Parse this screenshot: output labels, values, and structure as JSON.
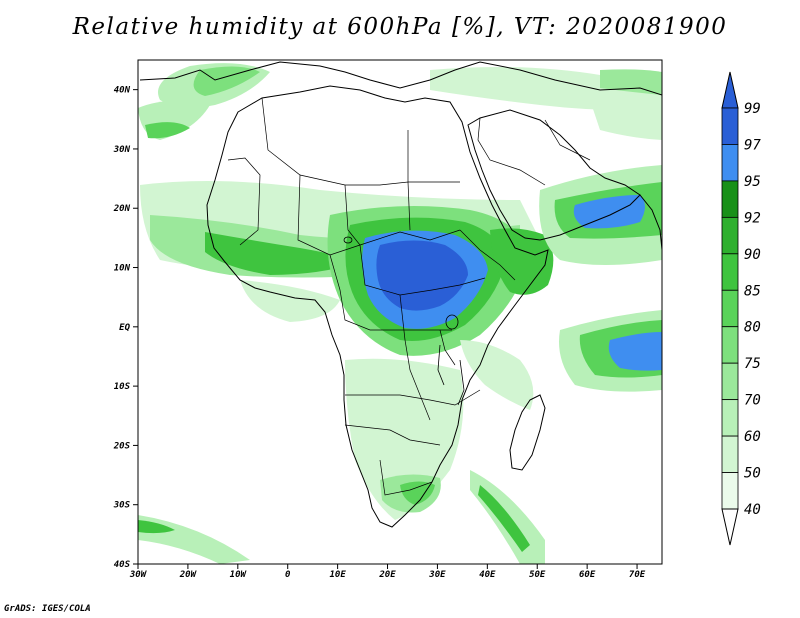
{
  "title": "Relative humidity at 600hPa [%], VT: 2020081900",
  "footer": "GrADS: IGES/COLA",
  "map": {
    "lon_range": [
      -30,
      75
    ],
    "lat_range": [
      -40,
      45
    ],
    "lon_ticks": [
      {
        "value": -30,
        "label": "30W"
      },
      {
        "value": -20,
        "label": "20W"
      },
      {
        "value": -10,
        "label": "10W"
      },
      {
        "value": 0,
        "label": "0"
      },
      {
        "value": 10,
        "label": "10E"
      },
      {
        "value": 20,
        "label": "20E"
      },
      {
        "value": 30,
        "label": "30E"
      },
      {
        "value": 40,
        "label": "40E"
      },
      {
        "value": 50,
        "label": "50E"
      },
      {
        "value": 60,
        "label": "60E"
      },
      {
        "value": 70,
        "label": "70E"
      }
    ],
    "lat_ticks": [
      {
        "value": 40,
        "label": "40N"
      },
      {
        "value": 30,
        "label": "30N"
      },
      {
        "value": 20,
        "label": "20N"
      },
      {
        "value": 10,
        "label": "10N"
      },
      {
        "value": 0,
        "label": "EQ"
      },
      {
        "value": -10,
        "label": "10S"
      },
      {
        "value": -20,
        "label": "20S"
      },
      {
        "value": -30,
        "label": "30S"
      },
      {
        "value": -40,
        "label": "40S"
      }
    ]
  },
  "colorbar": {
    "levels": [
      "99",
      "97",
      "95",
      "92",
      "90",
      "85",
      "80",
      "75",
      "70",
      "60",
      "50",
      "40"
    ],
    "colors": [
      "#2a5fd6",
      "#3f8ef0",
      "#189018",
      "#2fb02f",
      "#3fc43f",
      "#5ad35a",
      "#7de07d",
      "#9be89b",
      "#b8f0b8",
      "#d2f5d2",
      "#ebfbeb"
    ],
    "top_arrow_color": "#2a5fd6",
    "bottom_arrow_color": "#ffffff"
  },
  "humidity_colors": {
    "c40": "#ebfbeb",
    "c50": "#d2f5d2",
    "c60": "#b8f0b8",
    "c70": "#9be89b",
    "c75": "#7de07d",
    "c80": "#5ad35a",
    "c85": "#3fc43f",
    "c90": "#2fb02f",
    "c92": "#189018",
    "c95": "#3f8ef0",
    "c97": "#2a5fd6"
  }
}
